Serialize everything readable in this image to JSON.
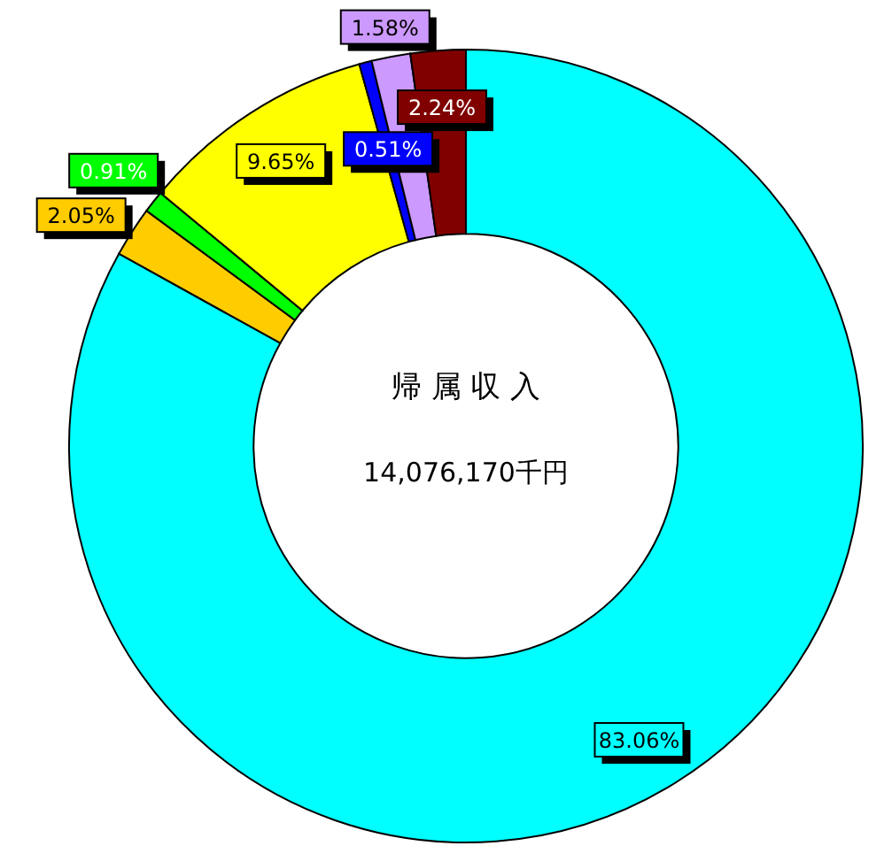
{
  "chart_data": {
    "type": "donut",
    "title": "帰 属 収 入",
    "subtitle": "14,076,170千円",
    "categories": [
      null,
      null,
      null,
      null,
      null,
      null,
      null
    ],
    "values": [
      83.06,
      2.05,
      0.91,
      9.65,
      0.51,
      1.58,
      2.24
    ],
    "colors": [
      "#00ffff",
      "#ffcc00",
      "#00ff00",
      "#ffff00",
      "#0000ff",
      "#cc99ff",
      "#800000"
    ],
    "value_labels": [
      "83.06%",
      "2.05%",
      "0.91%",
      "9.65%",
      "0.51%",
      "1.58%",
      "2.24%"
    ]
  }
}
